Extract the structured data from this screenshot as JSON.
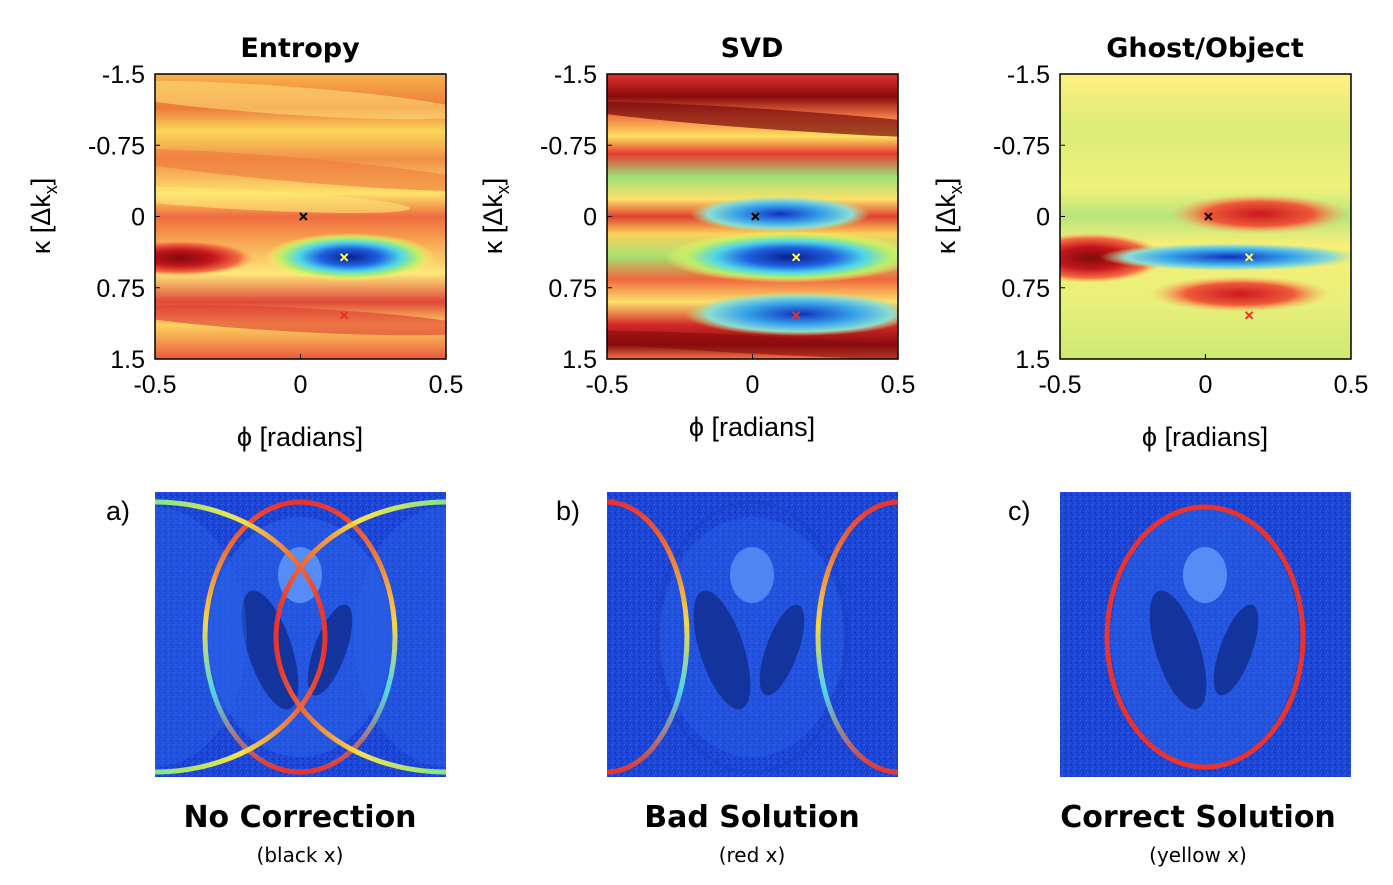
{
  "chart_data": [
    {
      "type": "heatmap",
      "id": "entropy",
      "title": "Entropy",
      "xlabel": "ϕ [radians]",
      "ylabel_main": "κ [Δk",
      "ylabel_sub": "x",
      "ylabel_end": "]",
      "xlim": [
        -0.5,
        0.5
      ],
      "ylim": [
        -1.5,
        1.5
      ],
      "xticks": [
        "-0.5",
        "0",
        "0.5"
      ],
      "yticks": [
        "-1.5",
        "-0.75",
        "0",
        "0.75",
        "1.5"
      ],
      "markers": [
        {
          "name": "black x",
          "x": 0.01,
          "y": 0.0,
          "color": "#000000"
        },
        {
          "name": "yellow x",
          "x": 0.15,
          "y": 0.43,
          "color": "#ffff66"
        },
        {
          "name": "red x",
          "x": 0.15,
          "y": 1.04,
          "color": "#e8332f"
        }
      ]
    },
    {
      "type": "heatmap",
      "id": "svd",
      "title": "SVD",
      "xlabel": "ϕ [radians]",
      "ylabel_main": "κ [Δk",
      "ylabel_sub": "x",
      "ylabel_end": "]",
      "xlim": [
        -0.5,
        0.5
      ],
      "ylim": [
        -1.5,
        1.5
      ],
      "xticks": [
        "-0.5",
        "0",
        "0.5"
      ],
      "yticks": [
        "-1.5",
        "-0.75",
        "0",
        "0.75",
        "1.5"
      ],
      "markers": [
        {
          "name": "black x",
          "x": 0.01,
          "y": 0.0,
          "color": "#000000"
        },
        {
          "name": "yellow x",
          "x": 0.15,
          "y": 0.43,
          "color": "#ffff66"
        },
        {
          "name": "red x",
          "x": 0.15,
          "y": 1.04,
          "color": "#e8332f"
        }
      ]
    },
    {
      "type": "heatmap",
      "id": "ghost",
      "title": "Ghost/Object",
      "xlabel": "ϕ [radians]",
      "ylabel_main": "κ [Δk",
      "ylabel_sub": "x",
      "ylabel_end": "]",
      "xlim": [
        -0.5,
        0.5
      ],
      "ylim": [
        -1.5,
        1.5
      ],
      "xticks": [
        "-0.5",
        "0",
        "0.5"
      ],
      "yticks": [
        "-1.5",
        "-0.75",
        "0",
        "0.75",
        "1.5"
      ],
      "markers": [
        {
          "name": "black x",
          "x": 0.01,
          "y": 0.0,
          "color": "#000000"
        },
        {
          "name": "yellow x",
          "x": 0.15,
          "y": 0.43,
          "color": "#ffff66"
        },
        {
          "name": "red x",
          "x": 0.15,
          "y": 1.04,
          "color": "#e8332f"
        }
      ]
    }
  ],
  "panels": [
    {
      "label": "a)",
      "caption": "No Correction",
      "subcaption": "(black x)"
    },
    {
      "label": "b)",
      "caption": "Bad Solution",
      "subcaption": "(red x)"
    },
    {
      "label": "c)",
      "caption": "Correct Solution",
      "subcaption": "(yellow x)"
    }
  ],
  "colors": {
    "image_bg": "#1a3fd0",
    "dark_blue": "#0a2a9c",
    "ring_red": "#e8332f",
    "colormap": [
      "#7f0000",
      "#d7191c",
      "#f46d43",
      "#fdae61",
      "#ffff66",
      "#a6e37a",
      "#4fd6e8",
      "#2f8df0",
      "#0b2fb3"
    ]
  }
}
